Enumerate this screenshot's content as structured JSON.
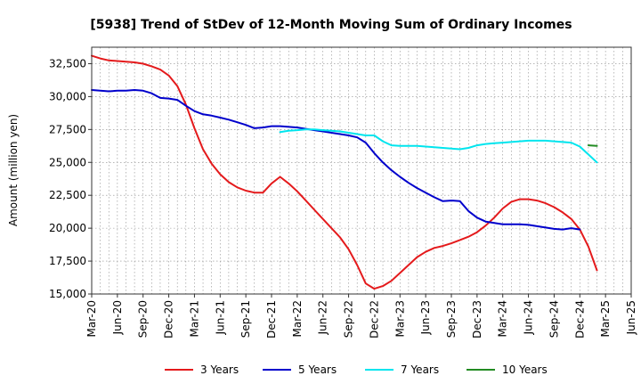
{
  "chart_data": {
    "type": "line",
    "title": "[5938]  Trend of StDev of 12-Month Moving Sum of Ordinary Incomes",
    "ylabel": "Amount (million yen)",
    "xlabel": "",
    "ylim": [
      15000,
      33750
    ],
    "y_ticks": [
      15000,
      17500,
      20000,
      22500,
      25000,
      27500,
      30000,
      32500
    ],
    "y_tick_labels": [
      "15,000",
      "17,500",
      "20,000",
      "22,500",
      "25,000",
      "27,500",
      "30,000",
      "32,500"
    ],
    "x_tick_labels": [
      "Mar-20",
      "Jun-20",
      "Sep-20",
      "Dec-20",
      "Mar-21",
      "Jun-21",
      "Sep-21",
      "Dec-21",
      "Mar-22",
      "Jun-22",
      "Sep-22",
      "Dec-22",
      "Mar-23",
      "Jun-23",
      "Sep-23",
      "Dec-23",
      "Mar-24",
      "Jun-24",
      "Sep-24",
      "Dec-24",
      "Mar-25",
      "Jun-25"
    ],
    "x_range": [
      0,
      63
    ],
    "grid": true,
    "legend_position": "bottom",
    "series": [
      {
        "name": "3 Years",
        "color": "#e41a1c",
        "x": [
          0,
          1,
          2,
          3,
          4,
          5,
          6,
          7,
          8,
          9,
          10,
          11,
          12,
          13,
          14,
          15,
          16,
          17,
          18,
          19,
          20,
          21,
          22,
          23,
          24,
          25,
          26,
          27,
          28,
          29,
          30,
          31,
          32,
          33,
          34,
          35,
          36,
          37,
          38,
          39,
          40,
          41,
          42,
          43,
          44,
          45,
          46,
          47,
          48,
          49,
          50,
          51,
          52,
          53,
          54,
          55,
          56,
          57,
          58,
          59,
          60
        ],
        "values": [
          33100,
          32900,
          32750,
          32700,
          32650,
          32600,
          32500,
          32300,
          32050,
          31600,
          30800,
          29400,
          27600,
          26000,
          24900,
          24100,
          23500,
          23100,
          22850,
          22700,
          22700,
          23400,
          23900,
          23400,
          22800,
          22100,
          21400,
          20700,
          20000,
          19300,
          18400,
          17200,
          15800,
          15400,
          15600,
          16000,
          16600,
          17200,
          17800,
          18200,
          18500,
          18650,
          18850,
          19100,
          19350,
          19700,
          20200,
          20800,
          21500,
          22000,
          22200,
          22200,
          22100,
          21900,
          21600,
          21200,
          20700,
          19900,
          18600,
          16800,
          null
        ]
      },
      {
        "name": "5 Years",
        "color": "#0000cc",
        "x": [
          0,
          1,
          2,
          3,
          4,
          5,
          6,
          7,
          8,
          9,
          10,
          11,
          12,
          13,
          14,
          15,
          16,
          17,
          18,
          19,
          20,
          21,
          22,
          23,
          24,
          25,
          26,
          27,
          28,
          29,
          30,
          31,
          32,
          33,
          34,
          35,
          36,
          37,
          38,
          39,
          40,
          41,
          42,
          43,
          44,
          45,
          46,
          47,
          48,
          49,
          50,
          51,
          52,
          53,
          54,
          55,
          56,
          57,
          58,
          59
        ],
        "values": [
          30500,
          30450,
          30400,
          30450,
          30450,
          30500,
          30450,
          30250,
          29900,
          29850,
          29750,
          29300,
          28900,
          28650,
          28550,
          28400,
          28250,
          28050,
          27850,
          27600,
          27650,
          27750,
          27750,
          27700,
          27650,
          27550,
          27450,
          27350,
          27250,
          27150,
          27050,
          26900,
          26500,
          25700,
          25000,
          24400,
          23900,
          23450,
          23050,
          22700,
          22350,
          22050,
          22100,
          22050,
          21300,
          20800,
          20500,
          20400,
          20300,
          20300,
          20300,
          20250,
          20150,
          20050,
          19950,
          19900,
          20000,
          19900,
          null,
          null
        ]
      },
      {
        "name": "7 Years",
        "color": "#00e5ee",
        "x": [
          22,
          23,
          24,
          25,
          26,
          27,
          28,
          29,
          30,
          31,
          32,
          33,
          34,
          35,
          36,
          37,
          38,
          39,
          40,
          41,
          42,
          43,
          44,
          45,
          46,
          47,
          48,
          49,
          50,
          51,
          52,
          53,
          54,
          55,
          56,
          57,
          58,
          59
        ],
        "values": [
          27300,
          27400,
          27450,
          27500,
          27500,
          27450,
          27400,
          27350,
          27250,
          27150,
          27050,
          27050,
          26600,
          26300,
          26250,
          26250,
          26250,
          26200,
          26150,
          26100,
          26050,
          26000,
          26100,
          26300,
          26400,
          26450,
          26500,
          26550,
          26600,
          26650,
          26650,
          26650,
          26600,
          26550,
          26500,
          26200,
          25600,
          25000
        ]
      },
      {
        "name": "10 Years",
        "color": "#228b22",
        "x": [
          58,
          59
        ],
        "values": [
          26300,
          26250
        ]
      }
    ]
  }
}
